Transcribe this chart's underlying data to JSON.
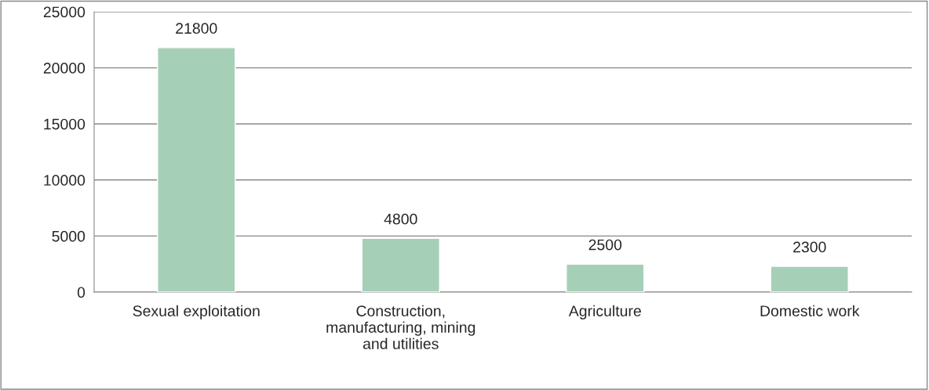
{
  "chart_data": {
    "type": "bar",
    "categories": [
      "Sexual exploitation",
      "Construction,\nmanufacturing, mining\nand utilities",
      "Agriculture",
      "Domestic work"
    ],
    "values": [
      21800,
      4800,
      2500,
      2300
    ],
    "color": "#a6cfb8",
    "ylim": [
      0,
      25000
    ],
    "yticks": [
      0,
      5000,
      10000,
      15000,
      20000,
      25000
    ],
    "grid": "y",
    "data_labels": true,
    "legend": false
  }
}
